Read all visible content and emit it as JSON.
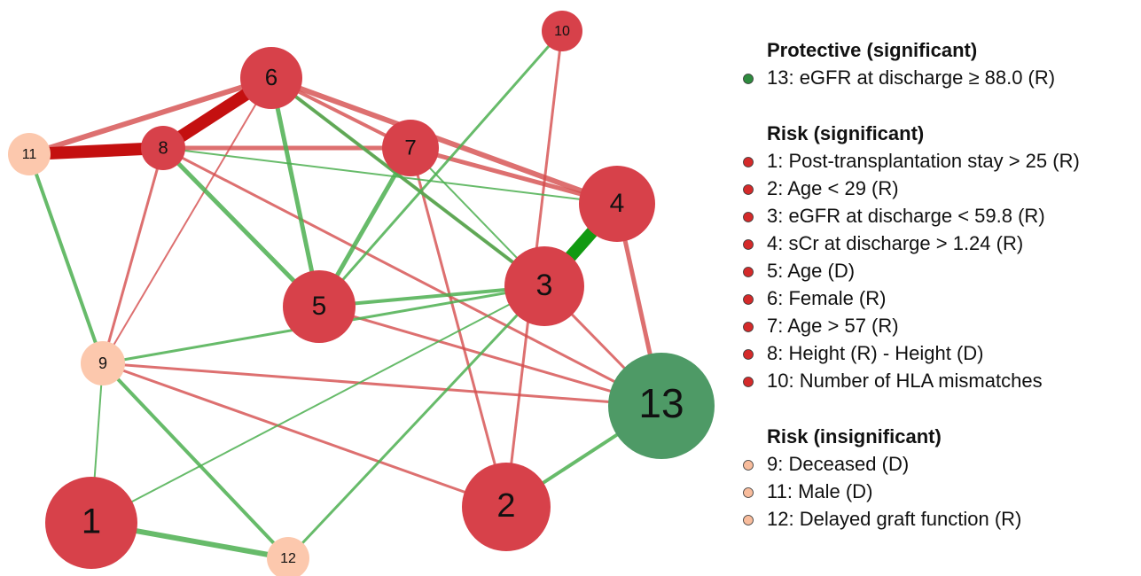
{
  "nodes": [
    {
      "label": "1"
    },
    {
      "label": "2"
    },
    {
      "label": "3"
    },
    {
      "label": "4"
    },
    {
      "label": "5"
    },
    {
      "label": "6"
    },
    {
      "label": "7"
    },
    {
      "label": "8"
    },
    {
      "label": "9"
    },
    {
      "label": "10"
    },
    {
      "label": "11"
    },
    {
      "label": "12"
    },
    {
      "label": "13"
    }
  ],
  "legend": {
    "groups": [
      {
        "title": "Protective (significant)",
        "color": "#2e8b3e",
        "items": [
          "13: eGFR at discharge ≥ 88.0 (R)"
        ]
      },
      {
        "title": "Risk (significant)",
        "color": "#d42a2a",
        "items": [
          "1: Post-transplantation stay > 25 (R)",
          "2: Age < 29 (R)",
          "3: eGFR at discharge < 59.8 (R)",
          "4: sCr at discharge > 1.24 (R)",
          "5: Age (D)",
          "6: Female (R)",
          "7: Age > 57 (R)",
          "8: Height (R) - Height (D)",
          "10: Number of HLA mismatches"
        ]
      },
      {
        "title": "Risk (insignificant)",
        "color": "#f8bc9c",
        "items": [
          "9: Deceased (D)",
          "11: Male (D)",
          "12: Delayed graft function (R)"
        ]
      }
    ]
  }
}
